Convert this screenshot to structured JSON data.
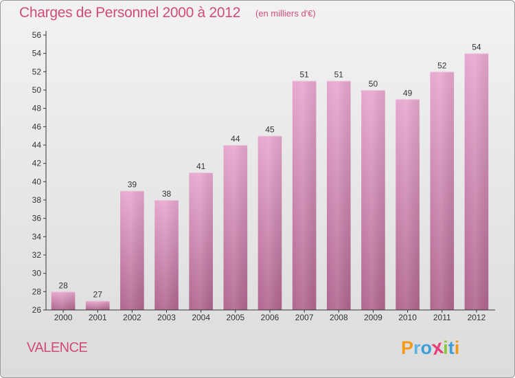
{
  "chart_data": {
    "type": "bar",
    "title": "Charges de Personnel 2000 à 2012",
    "subtitle": "(en milliers d'€)",
    "categories": [
      "2000",
      "2001",
      "2002",
      "2003",
      "2004",
      "2005",
      "2006",
      "2007",
      "2008",
      "2009",
      "2010",
      "2011",
      "2012"
    ],
    "values": [
      28,
      27,
      39,
      38,
      41,
      44,
      45,
      51,
      51,
      50,
      49,
      52,
      54
    ],
    "ylim": [
      26,
      56
    ],
    "yticks": [
      26,
      28,
      30,
      32,
      34,
      36,
      38,
      40,
      42,
      44,
      46,
      48,
      50,
      52,
      54,
      56
    ],
    "xlabel": "",
    "ylabel": "",
    "grid": false,
    "bar_color": "#c97aa6"
  },
  "location": "VALENCE",
  "brand": {
    "letters": [
      "P",
      "r",
      "o",
      "x",
      "i",
      "t",
      "i"
    ],
    "colors": [
      "#f39a1b",
      "#5fb3e4",
      "#3e9fd8",
      "#e83e7d",
      "#8cc63f",
      "#3e9fd8",
      "#f39a1b"
    ]
  }
}
